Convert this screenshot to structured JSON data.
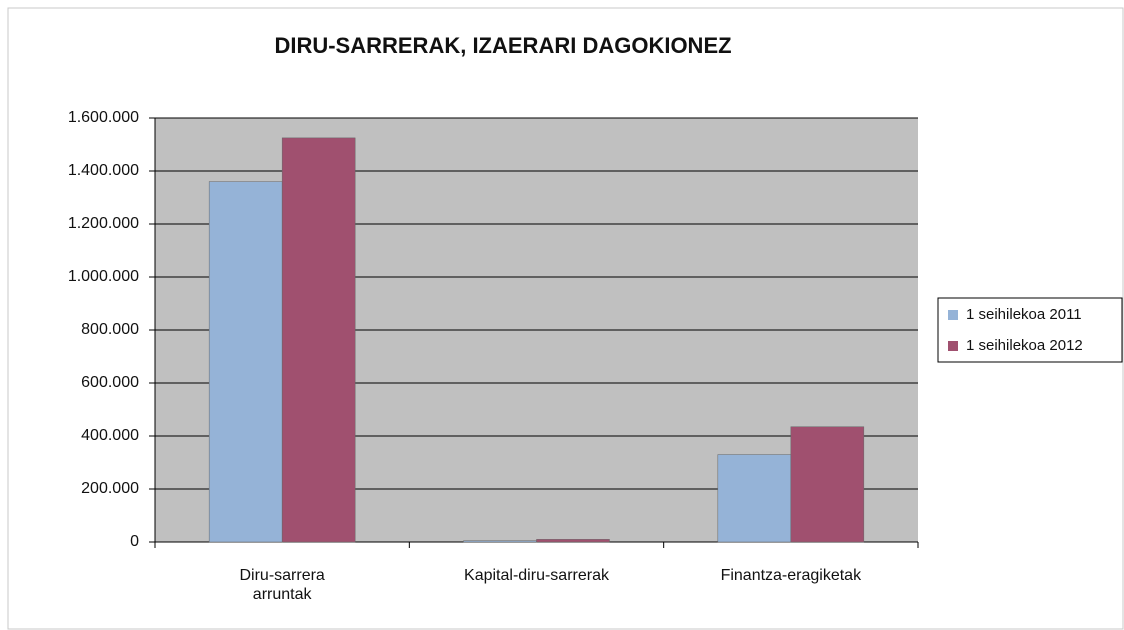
{
  "chart_data": {
    "type": "bar",
    "title": "DIRU-SARRERAK, IZAERARI DAGOKIONEZ",
    "categories": [
      "Diru-sarrera arruntak",
      "Kapital-diru-sarrerak",
      "Finantza-eragiketak"
    ],
    "series": [
      {
        "name": "1 seihilekoa 2011",
        "color": "#95b3d7",
        "values": [
          1360000,
          5000,
          330000
        ]
      },
      {
        "name": "1 seihilekoa 2012",
        "color": "#a0506f",
        "values": [
          1525000,
          10000,
          435000
        ]
      }
    ],
    "ylim": [
      0,
      1600000
    ],
    "yticks": [
      0,
      {
        "value": 200000,
        "label": "200.000"
      },
      {
        "value": 400000,
        "label": "400.000"
      },
      {
        "value": 600000,
        "label": "600.000"
      },
      {
        "value": 800000,
        "label": "800.000"
      },
      {
        "value": 1000000,
        "label": "1.000.000"
      },
      {
        "value": 1200000,
        "label": "1.200.000"
      },
      {
        "value": 1400000,
        "label": "1.400.000"
      },
      {
        "value": 1600000,
        "label": "1.600.000"
      }
    ],
    "grid": true,
    "legend": "right"
  }
}
